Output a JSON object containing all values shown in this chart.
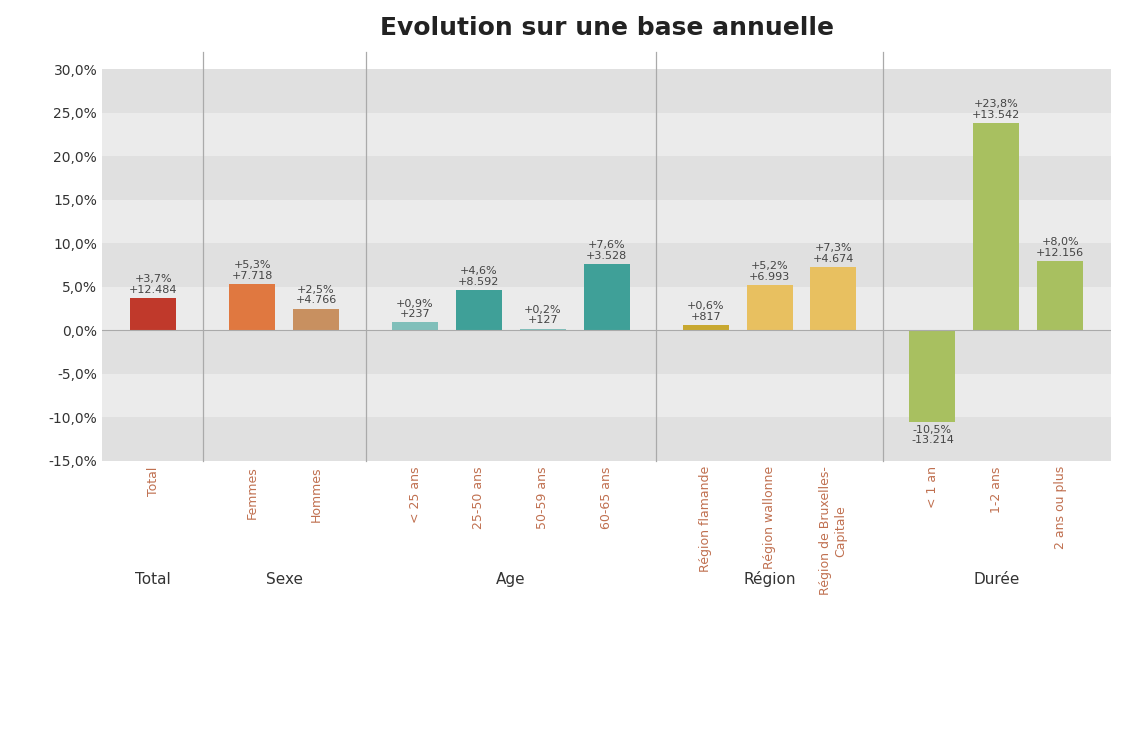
{
  "title": "Evolution sur une base annuelle",
  "categories": [
    "Total",
    "Femmes",
    "Hommes",
    "< 25 ans",
    "25-50 ans",
    "50-59 ans",
    "60-65 ans",
    "Région flamande",
    "Région wallonne",
    "Région de Bruxelles-\nCapitale",
    "< 1 an",
    "1-2 ans",
    "2 ans ou plus"
  ],
  "pct_values": [
    3.7,
    5.3,
    2.5,
    0.9,
    4.6,
    0.2,
    7.6,
    0.6,
    5.2,
    7.3,
    -10.5,
    23.8,
    8.0
  ],
  "abs_values": [
    12484,
    7718,
    4766,
    237,
    8592,
    127,
    3528,
    817,
    6993,
    4674,
    -13214,
    13542,
    12156
  ],
  "bar_colors": [
    "#c0392b",
    "#e07840",
    "#c89060",
    "#80bfba",
    "#3fa098",
    "#80bfba",
    "#3fa098",
    "#c8a830",
    "#e8c060",
    "#e8c060",
    "#a8c060",
    "#a8c060",
    "#a8c060"
  ],
  "group_info": [
    {
      "label": "Total",
      "indices": [
        0
      ]
    },
    {
      "label": "Sexe",
      "indices": [
        1,
        2
      ]
    },
    {
      "label": "Age",
      "indices": [
        3,
        4,
        5,
        6
      ]
    },
    {
      "label": "Région",
      "indices": [
        7,
        8,
        9
      ]
    },
    {
      "label": "Durée",
      "indices": [
        10,
        11,
        12
      ]
    }
  ],
  "ylim": [
    -15.0,
    32.0
  ],
  "yticks": [
    -15.0,
    -10.0,
    -5.0,
    0.0,
    5.0,
    10.0,
    15.0,
    20.0,
    25.0,
    30.0
  ],
  "background_color": "#ffffff",
  "band_dark": "#e0e0e0",
  "band_light": "#ebebeb",
  "title_fontsize": 18,
  "label_fontsize": 8.0,
  "bar_width": 0.72
}
